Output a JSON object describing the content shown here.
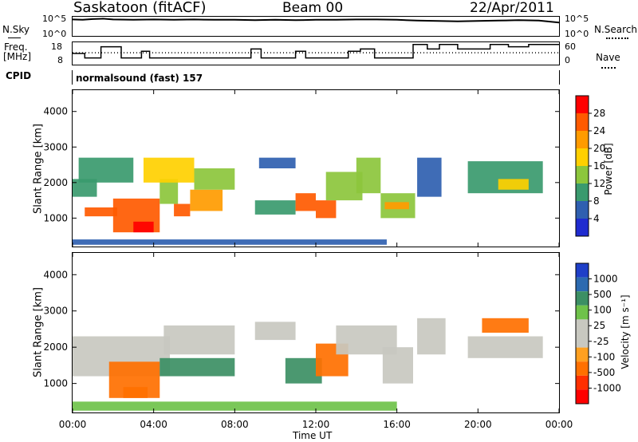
{
  "header": {
    "station": "Saskatoon (fitACF)",
    "beam": "Beam 00",
    "date": "22/Apr/2011"
  },
  "left_labels": {
    "nsky": "N.Sky",
    "freq_line1": "Freq.",
    "freq_line2": "[MHz]",
    "cpid": "CPID"
  },
  "right_labels": {
    "nsearch": "N.Search",
    "nave": "Nave"
  },
  "cpid_text": "normalsound (fast) 157",
  "colorbar_power": {
    "label": "Power [dB]",
    "ticks": [
      "28",
      "24",
      "20",
      "16",
      "12",
      "8",
      "4"
    ],
    "colors": [
      "#ff0000",
      "#ff5a00",
      "#ff9b00",
      "#ffd000",
      "#8cc63c",
      "#3a9a6e",
      "#2f5fb0",
      "#1f2bd0"
    ]
  },
  "colorbar_velocity": {
    "label": "Velocity [m s⁻¹]",
    "ticks": [
      "1000",
      "500",
      "100",
      "25",
      "-25",
      "-100",
      "-500",
      "-1000"
    ],
    "colors": [
      "#1f3fc8",
      "#2c6ab0",
      "#3c8f64",
      "#6fc24a",
      "#c8c8c0",
      "#c8c8c0",
      "#ffa020",
      "#ff7000",
      "#ff3000",
      "#ff0000"
    ]
  },
  "chart_data": [
    {
      "type": "line",
      "title": "",
      "xlabel": "",
      "series": [
        {
          "name": "N.Sky"
        },
        {
          "name": "N.Search"
        }
      ],
      "ytick_labels_left": [
        "10^5",
        "10^0"
      ],
      "ytick_labels_right": [
        "10^5",
        "10^0"
      ],
      "x": [
        0,
        0.5,
        1,
        1.5,
        2,
        3,
        4,
        5,
        6,
        7,
        8,
        9,
        10,
        11,
        12,
        13,
        14,
        15,
        16,
        17,
        18,
        19,
        20,
        21,
        22,
        23,
        24
      ],
      "values_log10": [
        4.3,
        4.2,
        4.4,
        4.5,
        4.3,
        4.2,
        4.3,
        4.2,
        4.3,
        4.2,
        4.2,
        4.1,
        4.2,
        4.1,
        4.2,
        4.2,
        4.3,
        4.3,
        4.2,
        4.0,
        3.9,
        3.8,
        3.9,
        4.0,
        4.1,
        4.0,
        3.5
      ]
    },
    {
      "type": "line",
      "series": [
        {
          "name": "Freq.",
          "unit": "MHz",
          "ytick_labels": [
            "18",
            "8"
          ]
        },
        {
          "name": "Nave",
          "ytick_labels": [
            "60",
            "0"
          ]
        }
      ],
      "freq_steps": [
        {
          "t0": 0,
          "t1": 0.6,
          "v": 13
        },
        {
          "t0": 0.6,
          "t1": 1.4,
          "v": 11
        },
        {
          "t0": 1.4,
          "t1": 2.4,
          "v": 16
        },
        {
          "t0": 2.4,
          "t1": 3.4,
          "v": 11
        },
        {
          "t0": 3.4,
          "t1": 3.8,
          "v": 14
        },
        {
          "t0": 3.8,
          "t1": 8.8,
          "v": 11
        },
        {
          "t0": 8.8,
          "t1": 9.3,
          "v": 15
        },
        {
          "t0": 9.3,
          "t1": 11.0,
          "v": 11
        },
        {
          "t0": 11.0,
          "t1": 11.5,
          "v": 14
        },
        {
          "t0": 11.5,
          "t1": 13.6,
          "v": 11
        },
        {
          "t0": 13.6,
          "t1": 14.2,
          "v": 14
        },
        {
          "t0": 14.2,
          "t1": 14.9,
          "v": 15
        },
        {
          "t0": 14.9,
          "t1": 16.8,
          "v": 11
        },
        {
          "t0": 16.8,
          "t1": 17.5,
          "v": 17
        },
        {
          "t0": 17.5,
          "t1": 18.1,
          "v": 15
        },
        {
          "t0": 18.1,
          "t1": 19.0,
          "v": 17
        },
        {
          "t0": 19.0,
          "t1": 20.6,
          "v": 15
        },
        {
          "t0": 20.6,
          "t1": 21.5,
          "v": 17
        },
        {
          "t0": 21.5,
          "t1": 22.5,
          "v": 16
        },
        {
          "t0": 22.5,
          "t1": 23.2,
          "v": 17
        },
        {
          "t0": 23.2,
          "t1": 24,
          "v": 17
        }
      ],
      "nave_level": 32
    },
    {
      "type": "heatmap",
      "title": "",
      "quantity": "Power",
      "unit": "dB",
      "xlabel": "",
      "ylabel": "Slant Range [km]",
      "yticks": [
        1000,
        2000,
        3000,
        4000
      ],
      "ylim": [
        200,
        4600
      ],
      "xlim": [
        0,
        24
      ],
      "clim": [
        0,
        32
      ],
      "regions": [
        {
          "t0": 0.0,
          "t1": 1.2,
          "r0": 1600,
          "r1": 2100,
          "v": 10
        },
        {
          "t0": 0.6,
          "t1": 2.2,
          "r0": 1050,
          "r1": 1300,
          "v": 24
        },
        {
          "t0": 2.0,
          "t1": 4.3,
          "r0": 600,
          "r1": 1550,
          "v": 27
        },
        {
          "t0": 3.0,
          "t1": 4.0,
          "r0": 600,
          "r1": 900,
          "v": 30
        },
        {
          "t0": 4.3,
          "t1": 5.2,
          "r0": 1400,
          "r1": 2100,
          "v": 14
        },
        {
          "t0": 5.0,
          "t1": 5.8,
          "r0": 1050,
          "r1": 1400,
          "v": 26
        },
        {
          "t0": 5.8,
          "t1": 7.4,
          "r0": 1200,
          "r1": 1800,
          "v": 22
        },
        {
          "t0": 6.0,
          "t1": 8.0,
          "r0": 1800,
          "r1": 2400,
          "v": 12
        },
        {
          "t0": 3.5,
          "t1": 6.0,
          "r0": 2000,
          "r1": 2700,
          "v": 18
        },
        {
          "t0": 0.3,
          "t1": 3.0,
          "r0": 2000,
          "r1": 2700,
          "v": 9
        },
        {
          "t0": 9.2,
          "t1": 11.0,
          "r0": 2400,
          "r1": 2700,
          "v": 6
        },
        {
          "t0": 9.0,
          "t1": 11.0,
          "r0": 1100,
          "r1": 1500,
          "v": 8
        },
        {
          "t0": 11.0,
          "t1": 12.0,
          "r0": 1200,
          "r1": 1700,
          "v": 24
        },
        {
          "t0": 12.0,
          "t1": 13.0,
          "r0": 1000,
          "r1": 1500,
          "v": 24
        },
        {
          "t0": 12.5,
          "t1": 14.3,
          "r0": 1500,
          "r1": 2300,
          "v": 15
        },
        {
          "t0": 14.0,
          "t1": 15.2,
          "r0": 1700,
          "r1": 2700,
          "v": 12
        },
        {
          "t0": 15.2,
          "t1": 16.9,
          "r0": 1000,
          "r1": 1700,
          "v": 14
        },
        {
          "t0": 15.4,
          "t1": 16.6,
          "r0": 1250,
          "r1": 1450,
          "v": 20
        },
        {
          "t0": 17.0,
          "t1": 18.2,
          "r0": 1600,
          "r1": 2700,
          "v": 7
        },
        {
          "t0": 19.5,
          "t1": 23.2,
          "r0": 1700,
          "r1": 2600,
          "v": 9
        },
        {
          "t0": 21.0,
          "t1": 22.5,
          "r0": 1800,
          "r1": 2100,
          "v": 18
        },
        {
          "t0": 0.0,
          "t1": 15.5,
          "r0": 250,
          "r1": 400,
          "v": 6
        }
      ]
    },
    {
      "type": "heatmap",
      "quantity": "Velocity",
      "unit": "m s-1",
      "ylabel": "Slant Range [km]",
      "xlabel": "Time UT",
      "xtick_labels": [
        "00:00",
        "04:00",
        "08:00",
        "12:00",
        "16:00",
        "20:00",
        "00:00"
      ],
      "xticks": [
        0,
        4,
        8,
        12,
        16,
        20,
        24
      ],
      "yticks": [
        1000,
        2000,
        3000,
        4000
      ],
      "ylim": [
        200,
        4600
      ],
      "xlim": [
        0,
        24
      ],
      "regions": [
        {
          "t0": 0.0,
          "t1": 4.8,
          "r0": 1200,
          "r1": 2300,
          "v": 0
        },
        {
          "t0": 1.8,
          "t1": 4.3,
          "r0": 600,
          "r1": 1600,
          "v": -150
        },
        {
          "t0": 2.5,
          "t1": 3.7,
          "r0": 600,
          "r1": 900,
          "v": -200
        },
        {
          "t0": 4.3,
          "t1": 8.0,
          "r0": 1200,
          "r1": 1700,
          "v": 300
        },
        {
          "t0": 4.5,
          "t1": 8.0,
          "r0": 1800,
          "r1": 2600,
          "v": 0
        },
        {
          "t0": 9.0,
          "t1": 11.0,
          "r0": 2200,
          "r1": 2700,
          "v": 0
        },
        {
          "t0": 10.5,
          "t1": 12.3,
          "r0": 1000,
          "r1": 1700,
          "v": 300
        },
        {
          "t0": 12.0,
          "t1": 13.6,
          "r0": 1200,
          "r1": 2100,
          "v": -150
        },
        {
          "t0": 13.0,
          "t1": 16.0,
          "r0": 1800,
          "r1": 2600,
          "v": 0
        },
        {
          "t0": 15.3,
          "t1": 16.8,
          "r0": 1000,
          "r1": 2000,
          "v": 0
        },
        {
          "t0": 17.0,
          "t1": 18.4,
          "r0": 1800,
          "r1": 2800,
          "v": 0
        },
        {
          "t0": 19.5,
          "t1": 23.2,
          "r0": 1700,
          "r1": 2300,
          "v": 0
        },
        {
          "t0": 20.2,
          "t1": 22.5,
          "r0": 2400,
          "r1": 2800,
          "v": -150
        },
        {
          "t0": 0.0,
          "t1": 16.0,
          "r0": 250,
          "r1": 500,
          "v": 50
        }
      ]
    }
  ]
}
